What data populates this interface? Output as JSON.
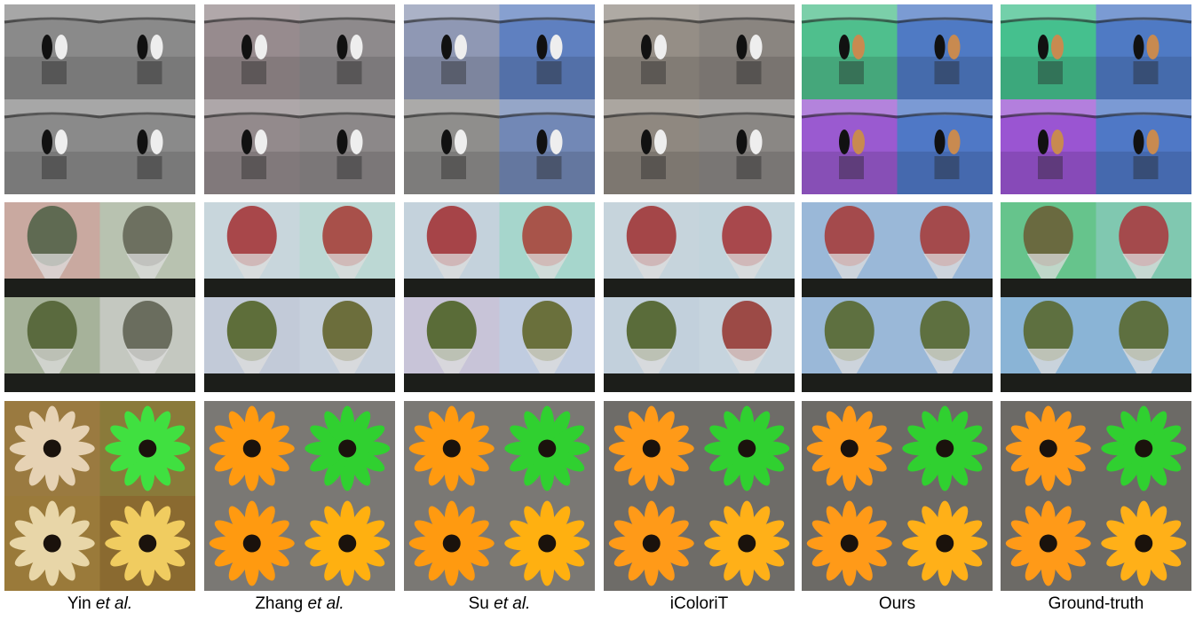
{
  "columns": [
    {
      "author": "Yin",
      "etal": "et al."
    },
    {
      "author": "Zhang",
      "etal": "et al."
    },
    {
      "author": "Su",
      "etal": "et al."
    },
    {
      "author": "iColoriT"
    },
    {
      "author": "Ours"
    },
    {
      "author": "Ground-truth"
    }
  ]
}
